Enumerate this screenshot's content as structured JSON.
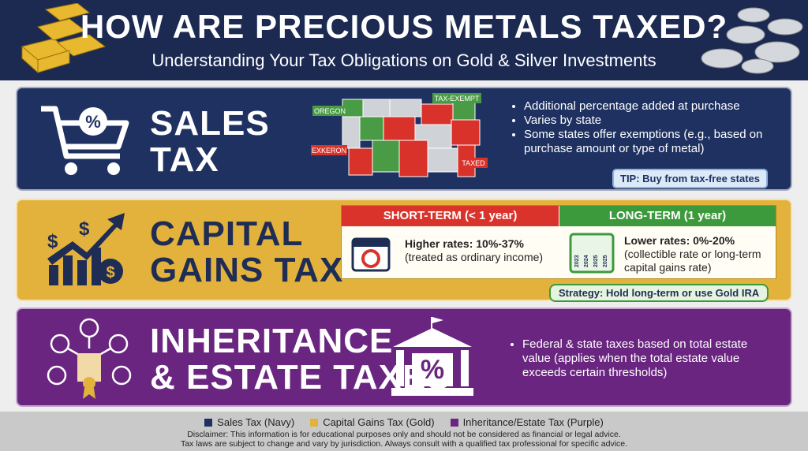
{
  "header": {
    "title": "HOW ARE PRECIOUS METALS TAXED?",
    "subtitle": "Understanding Your Tax Obligations on Gold & Silver Investments"
  },
  "icons": {
    "percent": "%",
    "dollar": "$"
  },
  "sales": {
    "title_lines": [
      "SALES",
      "TAX"
    ],
    "map_labels": {
      "oregon": "OREGON",
      "exempt": "TAX-EXEMPT",
      "exkeron": "EXKERON",
      "taxed": "TAXED"
    },
    "bullets": [
      "Additional percentage added at purchase",
      "Varies by state",
      "Some states offer exemptions (e.g., based on purchase amount or type of metal)"
    ],
    "tip": "TIP: Buy from tax-free states"
  },
  "capital": {
    "title_lines": [
      "CAPITAL",
      "GAINS TAX"
    ],
    "short": {
      "heading": "SHORT-TERM (< 1 year)",
      "lines": [
        "Higher rates: 10%-37%",
        "(treated as ordinary income)"
      ]
    },
    "long": {
      "heading": "LONG-TERM (1 year)",
      "lines": [
        "Lower rates: 0%-20%",
        "(collectible rate or long-term capital gains rate)"
      ]
    },
    "calendar_years": [
      "2023",
      "2024",
      "2025",
      "2025"
    ],
    "strategy": "Strategy: Hold long-term or use Gold IRA"
  },
  "inheritance": {
    "title_lines": [
      "INHERITANCE",
      "& ESTATE TAXES"
    ],
    "bullets": [
      "Federal & state taxes based on total estate value (applies when the total estate value exceeds certain thresholds)"
    ]
  },
  "legend": {
    "items": [
      {
        "name": "Sales Tax (Navy)",
        "color": "#1e3161"
      },
      {
        "name": "Capital Gains Tax (Gold)",
        "color": "#e3b23c"
      },
      {
        "name": "Inheritance/Estate Tax (Purple)",
        "color": "#6a2580"
      }
    ]
  },
  "disclaimer": {
    "lines": [
      "Disclaimer: This information is for educational purposes only and should not be considered as financial or legal advice.",
      "Tax laws are subject to change and vary by jurisdiction. Always consult with a qualified tax professional for specific advice."
    ]
  }
}
